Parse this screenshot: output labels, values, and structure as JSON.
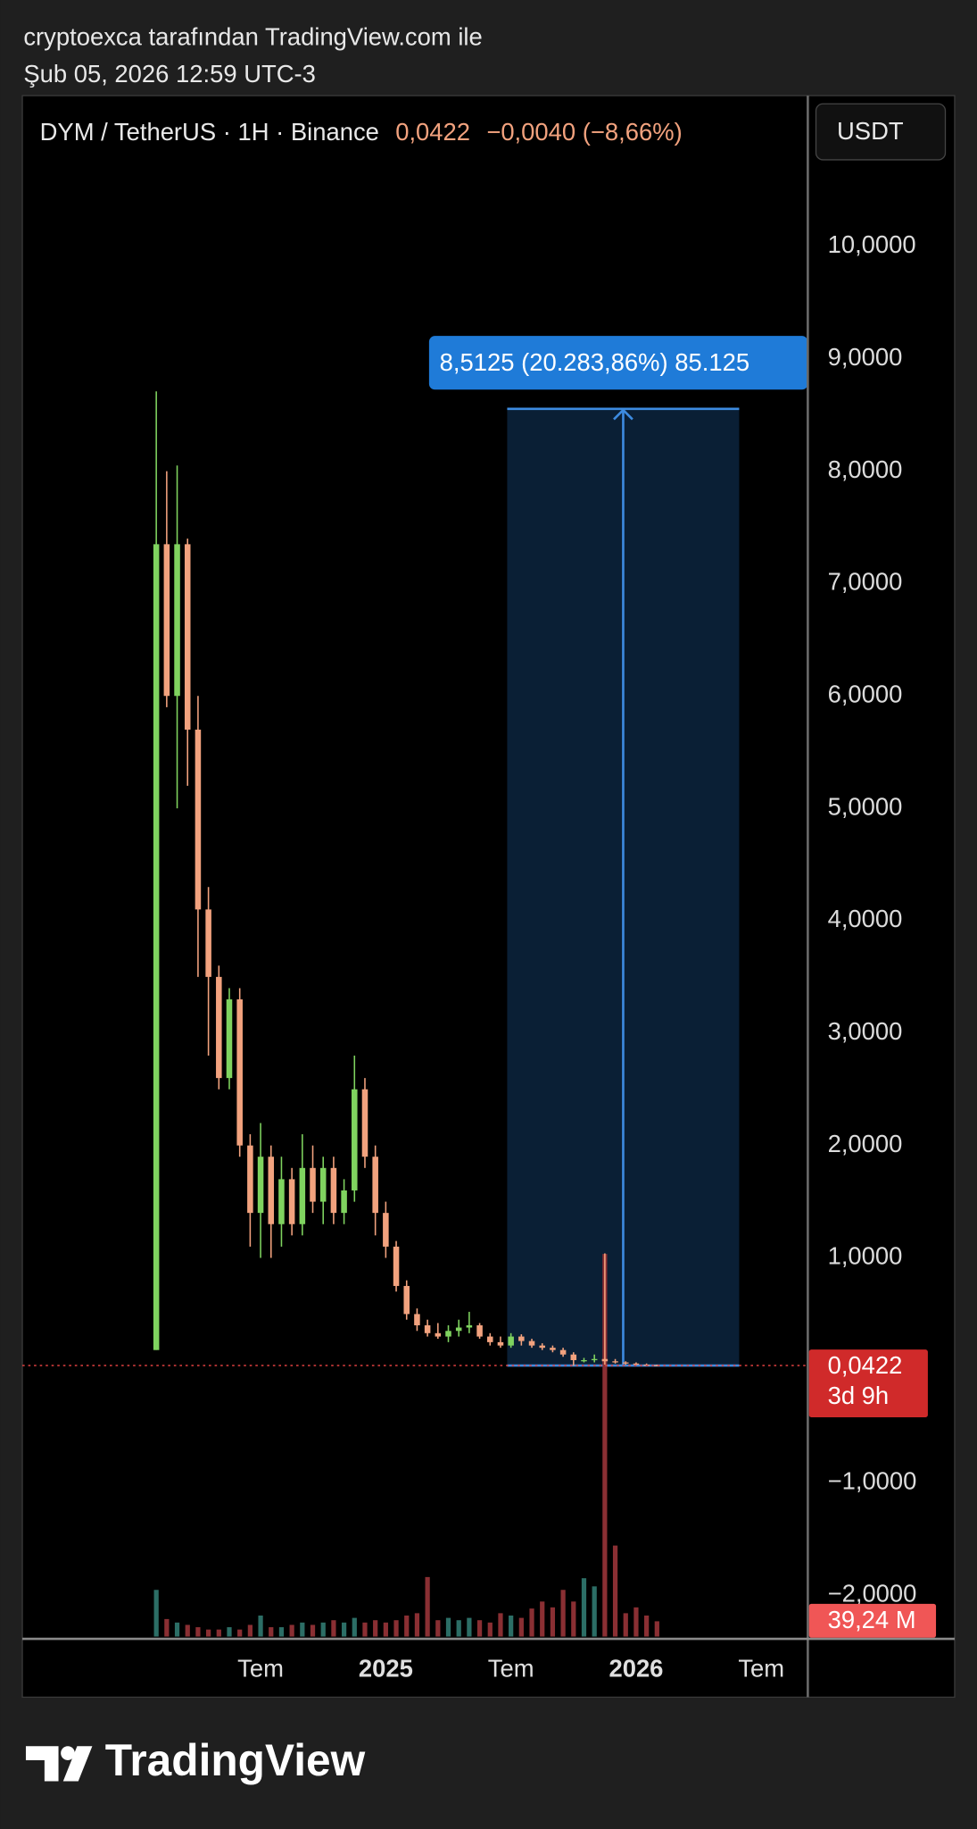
{
  "header": {
    "line1": "cryptoexca tarafından TradingView.com ile",
    "line2": "Şub 05, 2026 12:59 UTC-3"
  },
  "chart_data": {
    "type": "candlestick",
    "symbol": "DYM / TetherUS · 1H · Binance",
    "price_text": "0,0422",
    "change_text": "−0,0040 (−8,66%)",
    "currency": "USDT",
    "price_label": "0,0422",
    "countdown": "3d 9h",
    "volume_label": "39,24 M",
    "up_color": "#7fd35f",
    "down_color": "#f2a27e",
    "volume_up_color": "#2c6e66",
    "volume_down_color": "#8a2f33",
    "ylim": [
      -2.39,
      11.31
    ],
    "yticks": [
      {
        "value": 10,
        "label": "10,0000"
      },
      {
        "value": 9,
        "label": "9,0000"
      },
      {
        "value": 8,
        "label": "8,0000"
      },
      {
        "value": 7,
        "label": "7,0000"
      },
      {
        "value": 6,
        "label": "6,0000"
      },
      {
        "value": 5,
        "label": "5,0000"
      },
      {
        "value": 4,
        "label": "4,0000"
      },
      {
        "value": 3,
        "label": "3,0000"
      },
      {
        "value": 2,
        "label": "2,0000"
      },
      {
        "value": 1,
        "label": "1,0000"
      },
      {
        "value": -1,
        "label": "−1,0000"
      },
      {
        "value": -2,
        "label": "−2,0000"
      }
    ],
    "xlim": [
      -5.42,
      32.23
    ],
    "xticks": [
      {
        "value": 6,
        "label": "Tem"
      },
      {
        "value": 12,
        "label": "2025"
      },
      {
        "value": 18,
        "label": "Tem"
      },
      {
        "value": 24,
        "label": "2026"
      },
      {
        "value": 30,
        "label": "Tem"
      }
    ],
    "x": [
      1,
      1.5,
      2,
      2.5,
      3,
      3.5,
      4,
      4.5,
      5,
      5.5,
      6,
      6.5,
      7,
      7.5,
      8,
      8.5,
      9,
      9.5,
      10,
      10.5,
      11,
      11.5,
      12,
      12.5,
      13,
      13.5,
      14,
      14.5,
      15,
      15.5,
      16,
      16.5,
      17,
      17.5,
      18,
      18.5,
      19,
      19.5,
      20,
      20.5,
      21,
      21.5,
      22,
      22.5,
      23,
      23.5,
      24,
      24.5,
      25
    ],
    "open": [
      0.18,
      7.35,
      6.0,
      7.35,
      5.7,
      4.1,
      3.5,
      2.6,
      3.3,
      2.0,
      1.4,
      1.9,
      1.3,
      1.7,
      1.3,
      1.8,
      1.5,
      1.8,
      1.4,
      1.6,
      2.5,
      1.9,
      1.4,
      1.1,
      0.75,
      0.5,
      0.4,
      0.33,
      0.3,
      0.35,
      0.38,
      0.4,
      0.3,
      0.25,
      0.22,
      0.3,
      0.26,
      0.22,
      0.2,
      0.18,
      0.14,
      0.09,
      0.09,
      0.1,
      0.08,
      0.07,
      0.06,
      0.05,
      0.046
    ],
    "high": [
      8.71,
      8.0,
      8.05,
      7.4,
      6.0,
      4.3,
      3.6,
      3.4,
      3.4,
      2.1,
      2.2,
      2.0,
      1.9,
      1.8,
      2.1,
      2.0,
      1.9,
      1.9,
      1.7,
      2.8,
      2.6,
      2.0,
      1.5,
      1.15,
      0.8,
      0.55,
      0.45,
      0.42,
      0.4,
      0.45,
      0.52,
      0.42,
      0.33,
      0.3,
      0.33,
      0.32,
      0.28,
      0.24,
      0.22,
      0.2,
      0.16,
      0.11,
      0.14,
      1.04,
      0.1,
      0.08,
      0.07,
      0.06,
      0.05
    ],
    "low": [
      0.18,
      5.9,
      5.0,
      5.2,
      3.5,
      2.8,
      2.5,
      2.5,
      1.9,
      1.1,
      1.0,
      1.0,
      1.1,
      1.2,
      1.2,
      1.4,
      1.3,
      1.3,
      1.3,
      1.5,
      1.8,
      1.2,
      1.0,
      0.7,
      0.45,
      0.35,
      0.3,
      0.28,
      0.25,
      0.3,
      0.33,
      0.28,
      0.22,
      0.2,
      0.2,
      0.22,
      0.2,
      0.18,
      0.16,
      0.12,
      0.04,
      0.07,
      0.07,
      0.05,
      0.06,
      0.05,
      0.045,
      0.04,
      0.04
    ],
    "close": [
      7.35,
      6.0,
      7.35,
      5.7,
      4.1,
      3.5,
      2.6,
      3.3,
      2.0,
      1.4,
      1.9,
      1.3,
      1.7,
      1.3,
      1.8,
      1.5,
      1.8,
      1.4,
      1.6,
      2.5,
      1.9,
      1.4,
      1.1,
      0.75,
      0.5,
      0.4,
      0.33,
      0.3,
      0.35,
      0.38,
      0.4,
      0.3,
      0.25,
      0.22,
      0.3,
      0.26,
      0.22,
      0.2,
      0.18,
      0.14,
      0.09,
      0.09,
      0.1,
      0.08,
      0.07,
      0.06,
      0.05,
      0.046,
      0.0422
    ],
    "volume": [
      120,
      45,
      36,
      30,
      24,
      18,
      18,
      24,
      18,
      30,
      54,
      24,
      24,
      30,
      36,
      30,
      36,
      42,
      36,
      48,
      36,
      42,
      36,
      42,
      54,
      60,
      153,
      42,
      48,
      42,
      48,
      42,
      36,
      60,
      54,
      48,
      72,
      90,
      75,
      120,
      90,
      150,
      129,
      984,
      234,
      60,
      75,
      54,
      39.24
    ],
    "measure": {
      "label": "8,5125 (20.283,86%) 85.125",
      "x_range": [
        17.82,
        28.94
      ],
      "y_range": [
        0.042,
        8.5545
      ]
    }
  },
  "footer": {
    "brand": "TradingView"
  }
}
